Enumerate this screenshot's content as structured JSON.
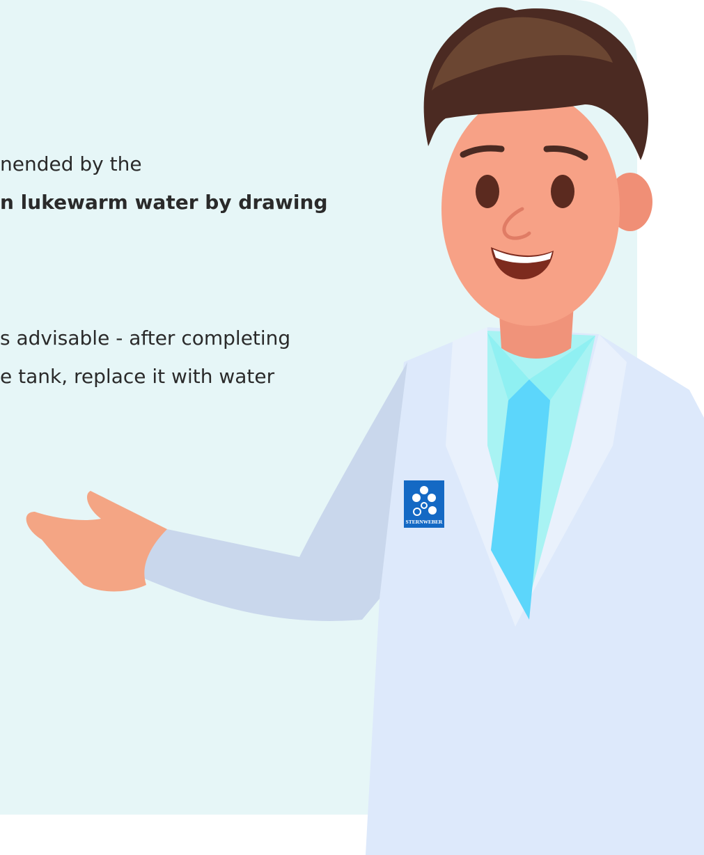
{
  "text": {
    "lines": [
      "nended by the",
      "n lukewarm water by drawing",
      "s advisable - after completing",
      "e tank, replace it with water"
    ]
  },
  "badge": {
    "label": "STERNWEBER"
  }
}
